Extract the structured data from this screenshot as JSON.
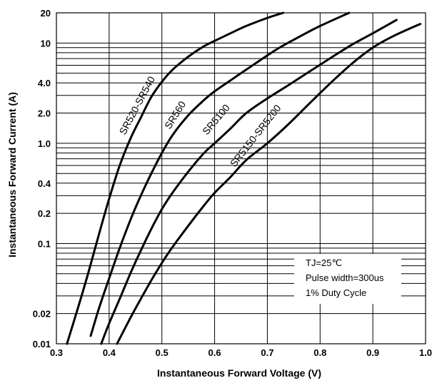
{
  "chart_data": {
    "type": "line",
    "title": "",
    "xlabel": "Instantaneous Forward Voltage (V)",
    "ylabel": "Instantaneous Forward Current (A)",
    "xlim": [
      0.3,
      1.0
    ],
    "ylim": [
      0.01,
      20
    ],
    "y_scale": "log",
    "x_ticks": [
      "0.3",
      "0.4",
      "0.5",
      "0.6",
      "0.7",
      "0.8",
      "0.9",
      "1.0"
    ],
    "y_ticks": [
      {
        "value": 0.01,
        "label": "0.01"
      },
      {
        "value": 0.02,
        "label": "0.02"
      },
      {
        "value": 0.1,
        "label": "0.1"
      },
      {
        "value": 0.2,
        "label": "0.2"
      },
      {
        "value": 0.4,
        "label": "0.4"
      },
      {
        "value": 1.0,
        "label": "1.0"
      },
      {
        "value": 2.0,
        "label": "2.0"
      },
      {
        "value": 4.0,
        "label": "4.0"
      },
      {
        "value": 10,
        "label": "10"
      },
      {
        "value": 20,
        "label": "20"
      }
    ],
    "grid": true,
    "series": [
      {
        "name": "SR520-SR540",
        "x": [
          0.32,
          0.34,
          0.36,
          0.38,
          0.4,
          0.42,
          0.44,
          0.46,
          0.48,
          0.5,
          0.52,
          0.55,
          0.58,
          0.6,
          0.63,
          0.66,
          0.7,
          0.73
        ],
        "y": [
          0.01,
          0.022,
          0.05,
          0.12,
          0.28,
          0.6,
          1.1,
          1.8,
          2.9,
          4.1,
          5.4,
          7.3,
          9.3,
          10.5,
          12.5,
          14.8,
          17.8,
          20
        ]
      },
      {
        "name": "SR560",
        "x": [
          0.365,
          0.38,
          0.4,
          0.42,
          0.44,
          0.46,
          0.48,
          0.5,
          0.52,
          0.55,
          0.58,
          0.6,
          0.64,
          0.68,
          0.72,
          0.76,
          0.8,
          0.855
        ],
        "y": [
          0.012,
          0.022,
          0.045,
          0.09,
          0.17,
          0.3,
          0.5,
          0.8,
          1.2,
          1.9,
          2.7,
          3.3,
          4.6,
          6.4,
          8.8,
          11.5,
          14.8,
          20
        ]
      },
      {
        "name": "SR5100",
        "x": [
          0.385,
          0.4,
          0.42,
          0.44,
          0.46,
          0.48,
          0.5,
          0.52,
          0.55,
          0.58,
          0.6,
          0.63,
          0.66,
          0.7,
          0.74,
          0.78,
          0.82,
          0.86,
          0.9,
          0.945
        ],
        "y": [
          0.01,
          0.016,
          0.028,
          0.05,
          0.085,
          0.14,
          0.22,
          0.32,
          0.52,
          0.8,
          1.0,
          1.4,
          2.0,
          2.8,
          3.8,
          5.2,
          7.1,
          9.6,
          12.5,
          17
        ]
      },
      {
        "name": "SR5150-SR5200",
        "x": [
          0.415,
          0.44,
          0.46,
          0.48,
          0.5,
          0.52,
          0.55,
          0.58,
          0.6,
          0.63,
          0.66,
          0.7,
          0.74,
          0.78,
          0.82,
          0.86,
          0.9,
          0.94,
          0.99
        ],
        "y": [
          0.01,
          0.018,
          0.028,
          0.043,
          0.064,
          0.092,
          0.15,
          0.24,
          0.32,
          0.46,
          0.68,
          1.0,
          1.55,
          2.5,
          4.0,
          6.2,
          9.0,
          11.8,
          15.5
        ]
      }
    ],
    "annotations": [
      "TJ=25℃",
      "Pulse width=300us",
      "1% Duty Cycle"
    ]
  }
}
